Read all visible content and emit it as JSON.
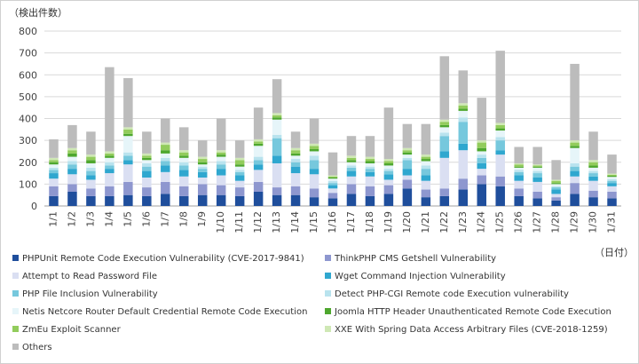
{
  "chart_data": {
    "type": "bar",
    "stacked": true,
    "ylabel": "（検出件数）",
    "xlabel": "（日付）",
    "ylim": [
      0,
      800
    ],
    "yticks": [
      0,
      100,
      200,
      300,
      400,
      500,
      600,
      700,
      800
    ],
    "grid": true,
    "categories": [
      "1/1",
      "1/2",
      "1/3",
      "1/4",
      "1/5",
      "1/6",
      "1/7",
      "1/8",
      "1/9",
      "1/10",
      "1/11",
      "1/12",
      "1/13",
      "1/14",
      "1/15",
      "1/16",
      "1/17",
      "1/18",
      "1/19",
      "1/20",
      "1/21",
      "1/22",
      "1/23",
      "1/24",
      "1/25",
      "1/26",
      "1/27",
      "1/28",
      "1/29",
      "1/30",
      "1/31"
    ],
    "series": [
      {
        "name": "PHPUnit Remote Code Execution Vulnerability (CVE-2017-9841)",
        "color": "#1f4e9c",
        "values": [
          45,
          65,
          45,
          45,
          50,
          45,
          55,
          45,
          50,
          50,
          45,
          65,
          50,
          50,
          40,
          35,
          55,
          45,
          55,
          80,
          40,
          45,
          75,
          100,
          90,
          45,
          35,
          25,
          55,
          40,
          35
        ]
      },
      {
        "name": "ThinkPHP CMS Getshell Vulnerability",
        "color": "#8e97cf",
        "values": [
          45,
          35,
          35,
          45,
          60,
          40,
          55,
          45,
          50,
          45,
          40,
          45,
          35,
          40,
          40,
          25,
          45,
          45,
          40,
          40,
          35,
          35,
          50,
          40,
          45,
          35,
          30,
          15,
          50,
          30,
          30
        ]
      },
      {
        "name": "Attempt to Read Password File",
        "color": "#dadff2",
        "values": [
          35,
          45,
          40,
          60,
          80,
          45,
          45,
          45,
          30,
          45,
          30,
          55,
          110,
          60,
          65,
          20,
          35,
          45,
          25,
          20,
          40,
          140,
          130,
          30,
          100,
          35,
          45,
          15,
          30,
          45,
          25
        ]
      },
      {
        "name": "Wget Command Injection Vulnerability",
        "color": "#2fa7cf",
        "values": [
          25,
          25,
          20,
          20,
          20,
          30,
          30,
          30,
          25,
          30,
          25,
          25,
          35,
          30,
          25,
          15,
          25,
          20,
          25,
          30,
          25,
          30,
          30,
          25,
          20,
          25,
          20,
          20,
          25,
          20,
          15
        ]
      },
      {
        "name": "PHP File Inclusion Vulnerability",
        "color": "#76c8dd",
        "values": [
          15,
          20,
          20,
          15,
          20,
          20,
          20,
          20,
          15,
          20,
          15,
          20,
          80,
          20,
          40,
          10,
          15,
          15,
          15,
          40,
          30,
          70,
          100,
          25,
          45,
          15,
          20,
          10,
          20,
          15,
          10
        ]
      },
      {
        "name": "Detect PHP-CGI Remote code Execution vulnerability",
        "color": "#b9e3ee",
        "values": [
          10,
          15,
          15,
          15,
          15,
          15,
          15,
          15,
          10,
          15,
          10,
          15,
          15,
          15,
          20,
          10,
          10,
          10,
          10,
          10,
          15,
          15,
          20,
          15,
          15,
          10,
          10,
          5,
          15,
          10,
          8
        ]
      },
      {
        "name": "Netis Netcore Router Default Credential Remote Code Execution",
        "color": "#e6f5f9",
        "values": [
          15,
          20,
          20,
          20,
          75,
          15,
          20,
          20,
          10,
          20,
          15,
          50,
          70,
          15,
          20,
          10,
          15,
          15,
          15,
          15,
          20,
          25,
          30,
          15,
          30,
          10,
          15,
          10,
          70,
          15,
          10
        ]
      },
      {
        "name": "Joomla HTTP Header Unauthenticated Remote Code Execution",
        "color": "#4ea72e",
        "values": [
          10,
          15,
          15,
          10,
          10,
          10,
          15,
          10,
          10,
          10,
          10,
          10,
          10,
          10,
          10,
          5,
          10,
          10,
          10,
          10,
          10,
          10,
          10,
          15,
          10,
          5,
          5,
          5,
          10,
          10,
          5
        ]
      },
      {
        "name": "ZmEu Exploit Scanner",
        "color": "#92cc5c",
        "values": [
          10,
          15,
          15,
          10,
          20,
          10,
          25,
          15,
          15,
          10,
          20,
          10,
          10,
          15,
          15,
          5,
          10,
          10,
          10,
          10,
          10,
          15,
          15,
          25,
          15,
          10,
          5,
          10,
          15,
          15,
          5
        ]
      },
      {
        "name": "XXE With Spring Data Access Arbitrary Files (CVE-2018-1259)",
        "color": "#cfe8b5",
        "values": [
          10,
          10,
          10,
          10,
          10,
          10,
          10,
          10,
          10,
          10,
          10,
          10,
          10,
          10,
          10,
          5,
          10,
          10,
          10,
          10,
          10,
          10,
          10,
          10,
          10,
          5,
          5,
          5,
          10,
          10,
          5
        ]
      },
      {
        "name": "Others",
        "color": "#bcbcbc",
        "values": [
          85,
          105,
          105,
          385,
          225,
          100,
          110,
          105,
          75,
          145,
          80,
          145,
          155,
          75,
          115,
          105,
          90,
          95,
          235,
          110,
          140,
          290,
          150,
          195,
          330,
          75,
          80,
          90,
          350,
          130,
          87
        ]
      }
    ]
  }
}
